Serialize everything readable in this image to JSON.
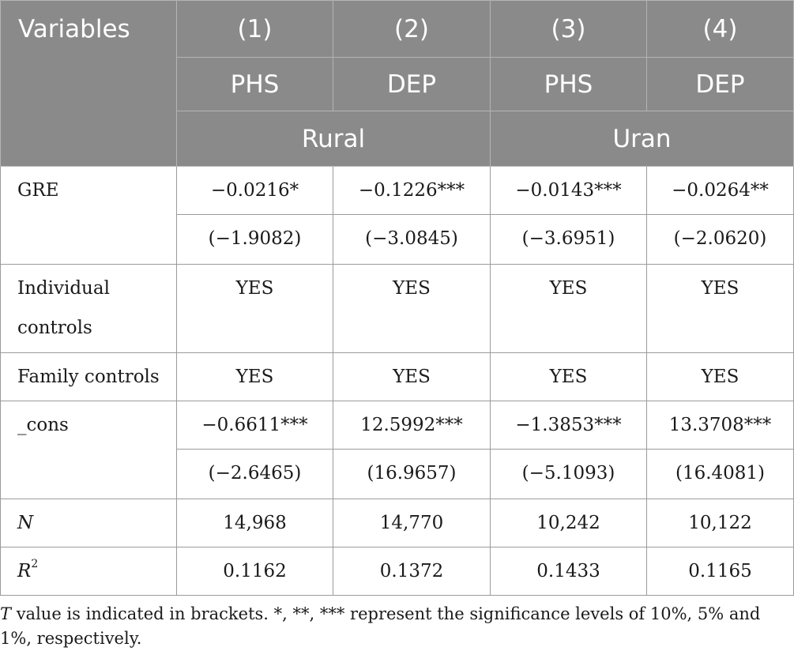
{
  "header": {
    "variables_label": "Variables",
    "model_numbers": [
      "(1)",
      "(2)",
      "(3)",
      "(4)"
    ],
    "dependent_vars": [
      "PHS",
      "DEP",
      "PHS",
      "DEP"
    ],
    "groups": [
      "Rural",
      "Uran"
    ]
  },
  "rows": {
    "gre": {
      "label": "GRE",
      "coef": [
        "−0.0216*",
        "−0.1226***",
        "−0.0143***",
        "−0.0264**"
      ],
      "tval": [
        "(−1.9082)",
        "(−3.0845)",
        "(−3.6951)",
        "(−2.0620)"
      ]
    },
    "individual": {
      "label_line1": "Individual",
      "label_line2": "controls",
      "values": [
        "YES",
        "YES",
        "YES",
        "YES"
      ]
    },
    "family": {
      "label": "Family controls",
      "values": [
        "YES",
        "YES",
        "YES",
        "YES"
      ]
    },
    "cons": {
      "label": "_cons",
      "coef": [
        "−0.6611***",
        "12.5992***",
        "−1.3853***",
        "13.3708***"
      ],
      "tval": [
        "(−2.6465)",
        "(16.9657)",
        "(−5.1093)",
        "(16.4081)"
      ]
    },
    "n": {
      "label": "N",
      "values": [
        "14,968",
        "14,770",
        "10,242",
        "10,122"
      ]
    },
    "r2": {
      "label": "R",
      "label_sup": "2",
      "values": [
        "0.1162",
        "0.1372",
        "0.1433",
        "0.1165"
      ]
    }
  },
  "note": {
    "t_symbol": "T",
    "text": " value is indicated in brackets. *, **, *** represent the significance levels of 10%, 5% and 1%, respectively."
  }
}
